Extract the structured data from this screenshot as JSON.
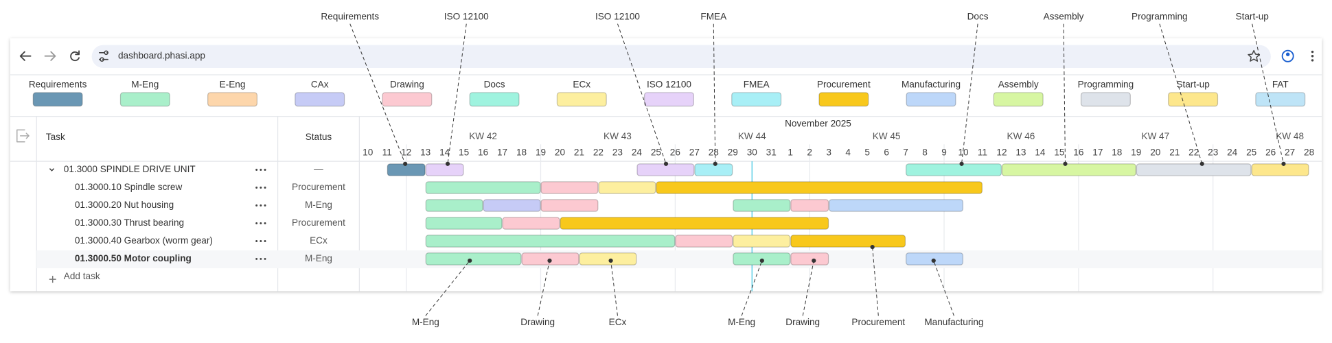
{
  "browser": {
    "url": "dashboard.phasi.app"
  },
  "phases": [
    {
      "name": "Requirements",
      "color": "#6a97b4"
    },
    {
      "name": "M-Eng",
      "color": "#a9efca"
    },
    {
      "name": "E-Eng",
      "color": "#fdd6ab"
    },
    {
      "name": "CAx",
      "color": "#c6cbf6"
    },
    {
      "name": "Drawing",
      "color": "#fcc9d1"
    },
    {
      "name": "Docs",
      "color": "#9ff3df"
    },
    {
      "name": "ECx",
      "color": "#fdef9f"
    },
    {
      "name": "ISO 12100",
      "color": "#e6d2f9"
    },
    {
      "name": "FMEA",
      "color": "#a8eff6"
    },
    {
      "name": "Procurement",
      "color": "#f8c81c"
    },
    {
      "name": "Manufacturing",
      "color": "#bdd7f9"
    },
    {
      "name": "Assembly",
      "color": "#d7f6a2"
    },
    {
      "name": "Programming",
      "color": "#dee3ea"
    },
    {
      "name": "Start-up",
      "color": "#fde78c"
    },
    {
      "name": "FAT",
      "color": "#bee4f7"
    }
  ],
  "table": {
    "task_header": "Task",
    "status_header": "Status",
    "add_task": "Add task"
  },
  "timeline": {
    "month_label": "November 2025",
    "weeks": [
      "KW 42",
      "KW 43",
      "KW 44",
      "KW 45",
      "KW 46",
      "KW 47",
      "KW 48"
    ],
    "days": [
      10,
      11,
      12,
      13,
      14,
      15,
      16,
      17,
      18,
      19,
      20,
      21,
      22,
      23,
      24,
      25,
      26,
      27,
      28,
      29,
      30,
      31,
      1,
      2,
      3,
      4,
      5,
      6,
      7,
      8,
      9,
      10,
      11,
      12,
      13,
      14,
      15,
      16,
      17,
      18,
      19,
      20,
      21,
      22,
      23,
      24,
      25,
      26,
      27,
      28
    ]
  },
  "rows": [
    {
      "task": "01.3000 SPINDLE DRIVE UNIT",
      "status": "—",
      "bars": [
        {
          "phase": 0,
          "start": 1,
          "end": 3
        },
        {
          "phase": 7,
          "start": 3,
          "end": 5
        },
        {
          "phase": 7,
          "start": 14,
          "end": 17
        },
        {
          "phase": 8,
          "start": 17,
          "end": 19
        },
        {
          "phase": 5,
          "start": 28,
          "end": 33
        },
        {
          "phase": 11,
          "start": 33,
          "end": 40
        },
        {
          "phase": 12,
          "start": 40,
          "end": 46
        },
        {
          "phase": 13,
          "start": 46,
          "end": 49
        }
      ]
    },
    {
      "task": "01.3000.10 Spindle screw",
      "status": "Procurement",
      "bars": [
        {
          "phase": 1,
          "start": 3,
          "end": 9
        },
        {
          "phase": 4,
          "start": 9,
          "end": 12
        },
        {
          "phase": 6,
          "start": 12,
          "end": 15
        },
        {
          "phase": 9,
          "start": 15,
          "end": 32
        }
      ]
    },
    {
      "task": "01.3000.20 Nut housing",
      "status": "M-Eng",
      "bars": [
        {
          "phase": 1,
          "start": 3,
          "end": 6
        },
        {
          "phase": 3,
          "start": 6,
          "end": 9
        },
        {
          "phase": 4,
          "start": 9,
          "end": 12
        },
        {
          "phase": 1,
          "start": 19,
          "end": 22
        },
        {
          "phase": 4,
          "start": 22,
          "end": 24
        },
        {
          "phase": 10,
          "start": 24,
          "end": 31
        }
      ]
    },
    {
      "task": "01.3000.30 Thrust bearing",
      "status": "Procurement",
      "bars": [
        {
          "phase": 1,
          "start": 3,
          "end": 7
        },
        {
          "phase": 4,
          "start": 7,
          "end": 10
        },
        {
          "phase": 9,
          "start": 10,
          "end": 24
        }
      ]
    },
    {
      "task": "01.3000.40 Gearbox (worm gear)",
      "status": "ECx",
      "bars": [
        {
          "phase": 1,
          "start": 3,
          "end": 16
        },
        {
          "phase": 4,
          "start": 16,
          "end": 19
        },
        {
          "phase": 6,
          "start": 19,
          "end": 22
        },
        {
          "phase": 9,
          "start": 22,
          "end": 28
        }
      ]
    },
    {
      "task": "01.3000.50 Motor coupling",
      "status": "M-Eng",
      "highlighted": true,
      "bars": [
        {
          "phase": 1,
          "start": 3,
          "end": 8
        },
        {
          "phase": 4,
          "start": 8,
          "end": 11
        },
        {
          "phase": 6,
          "start": 11,
          "end": 14
        },
        {
          "phase": 1,
          "start": 19,
          "end": 22
        },
        {
          "phase": 4,
          "start": 22,
          "end": 24
        },
        {
          "phase": 10,
          "start": 28,
          "end": 31
        }
      ]
    }
  ],
  "annotations": {
    "top": [
      "Requirements",
      "ISO 12100",
      "ISO 12100",
      "FMEA",
      "Docs",
      "Assembly",
      "Programming",
      "Start-up"
    ],
    "bottom": [
      "M-Eng",
      "Drawing",
      "ECx",
      "M-Eng",
      "Drawing",
      "Procurement",
      "Manufacturing"
    ]
  }
}
